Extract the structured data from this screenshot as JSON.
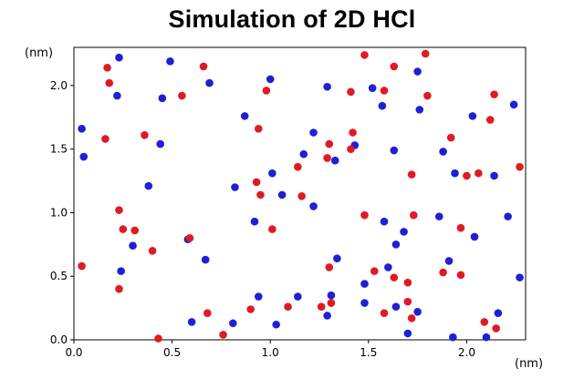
{
  "chart_data": {
    "type": "scatter",
    "title": "Simulation of 2D HCl",
    "x_unit_label": "(nm)",
    "y_unit_label": "(nm)",
    "xlim": [
      0.0,
      2.3
    ],
    "ylim": [
      0.0,
      2.3
    ],
    "x_ticks": [
      "0.0",
      "0.5",
      "1.0",
      "1.5",
      "2.0"
    ],
    "y_ticks": [
      "0.0",
      "0.5",
      "1.0",
      "1.5",
      "2.0"
    ],
    "x_tick_values": [
      0.0,
      0.5,
      1.0,
      1.5,
      2.0
    ],
    "y_tick_values": [
      0.0,
      0.5,
      1.0,
      1.5,
      2.0
    ],
    "grid": false,
    "colors": {
      "blue": "#1f1fd6",
      "red": "#e01a24"
    },
    "series": [
      {
        "color": "blue",
        "points": [
          [
            0.04,
            1.66
          ],
          [
            0.05,
            1.44
          ],
          [
            0.23,
            2.22
          ],
          [
            0.22,
            1.92
          ],
          [
            0.24,
            0.54
          ],
          [
            0.3,
            0.74
          ],
          [
            0.38,
            1.21
          ],
          [
            0.44,
            1.54
          ],
          [
            0.45,
            1.9
          ],
          [
            0.49,
            2.19
          ],
          [
            0.58,
            0.79
          ],
          [
            0.6,
            0.14
          ],
          [
            0.67,
            0.63
          ],
          [
            0.69,
            2.02
          ],
          [
            0.81,
            0.13
          ],
          [
            0.82,
            1.2
          ],
          [
            0.87,
            1.76
          ],
          [
            0.92,
            0.93
          ],
          [
            0.94,
            0.34
          ],
          [
            1.0,
            2.05
          ],
          [
            1.01,
            1.31
          ],
          [
            1.03,
            0.12
          ],
          [
            1.06,
            1.14
          ],
          [
            1.14,
            0.34
          ],
          [
            1.17,
            1.46
          ],
          [
            1.22,
            1.63
          ],
          [
            1.22,
            1.05
          ],
          [
            1.29,
            1.99
          ],
          [
            1.29,
            0.19
          ],
          [
            1.31,
            0.35
          ],
          [
            1.33,
            1.41
          ],
          [
            1.34,
            0.64
          ],
          [
            1.43,
            1.53
          ],
          [
            1.48,
            0.29
          ],
          [
            1.48,
            0.44
          ],
          [
            1.52,
            1.98
          ],
          [
            1.57,
            1.84
          ],
          [
            1.58,
            0.93
          ],
          [
            1.6,
            0.57
          ],
          [
            1.63,
            1.49
          ],
          [
            1.64,
            0.75
          ],
          [
            1.64,
            0.26
          ],
          [
            1.68,
            0.85
          ],
          [
            1.7,
            0.05
          ],
          [
            1.75,
            2.11
          ],
          [
            1.75,
            0.22
          ],
          [
            1.76,
            1.81
          ],
          [
            1.86,
            0.97
          ],
          [
            1.88,
            1.48
          ],
          [
            1.91,
            0.62
          ],
          [
            1.93,
            0.02
          ],
          [
            1.94,
            1.31
          ],
          [
            2.03,
            1.76
          ],
          [
            2.04,
            0.81
          ],
          [
            2.1,
            0.02
          ],
          [
            2.14,
            1.29
          ],
          [
            2.16,
            0.21
          ],
          [
            2.21,
            0.97
          ],
          [
            2.24,
            1.85
          ],
          [
            2.27,
            0.49
          ]
        ]
      },
      {
        "color": "red",
        "points": [
          [
            0.04,
            0.58
          ],
          [
            0.16,
            1.58
          ],
          [
            0.17,
            2.14
          ],
          [
            0.18,
            2.02
          ],
          [
            0.23,
            1.02
          ],
          [
            0.23,
            0.4
          ],
          [
            0.25,
            0.87
          ],
          [
            0.31,
            0.86
          ],
          [
            0.36,
            1.61
          ],
          [
            0.4,
            0.7
          ],
          [
            0.43,
            0.01
          ],
          [
            0.55,
            1.92
          ],
          [
            0.59,
            0.8
          ],
          [
            0.66,
            2.15
          ],
          [
            0.68,
            0.21
          ],
          [
            0.76,
            0.04
          ],
          [
            0.9,
            0.24
          ],
          [
            0.93,
            1.24
          ],
          [
            0.94,
            1.66
          ],
          [
            0.95,
            1.14
          ],
          [
            0.98,
            1.96
          ],
          [
            1.01,
            0.87
          ],
          [
            1.09,
            0.26
          ],
          [
            1.14,
            1.36
          ],
          [
            1.16,
            1.13
          ],
          [
            1.26,
            0.26
          ],
          [
            1.29,
            1.43
          ],
          [
            1.3,
            1.54
          ],
          [
            1.3,
            0.57
          ],
          [
            1.31,
            0.29
          ],
          [
            1.41,
            1.5
          ],
          [
            1.41,
            1.95
          ],
          [
            1.42,
            1.63
          ],
          [
            1.48,
            0.98
          ],
          [
            1.48,
            2.24
          ],
          [
            1.53,
            0.54
          ],
          [
            1.58,
            1.96
          ],
          [
            1.58,
            0.21
          ],
          [
            1.63,
            2.15
          ],
          [
            1.63,
            0.49
          ],
          [
            1.7,
            0.3
          ],
          [
            1.7,
            0.45
          ],
          [
            1.72,
            1.3
          ],
          [
            1.72,
            0.17
          ],
          [
            1.73,
            0.98
          ],
          [
            1.79,
            2.25
          ],
          [
            1.8,
            1.92
          ],
          [
            1.88,
            0.53
          ],
          [
            1.92,
            1.59
          ],
          [
            1.97,
            0.51
          ],
          [
            1.97,
            0.88
          ],
          [
            2.0,
            1.29
          ],
          [
            2.06,
            1.31
          ],
          [
            2.09,
            0.14
          ],
          [
            2.12,
            1.73
          ],
          [
            2.14,
            1.93
          ],
          [
            2.15,
            0.09
          ],
          [
            2.27,
            1.36
          ]
        ]
      }
    ]
  }
}
